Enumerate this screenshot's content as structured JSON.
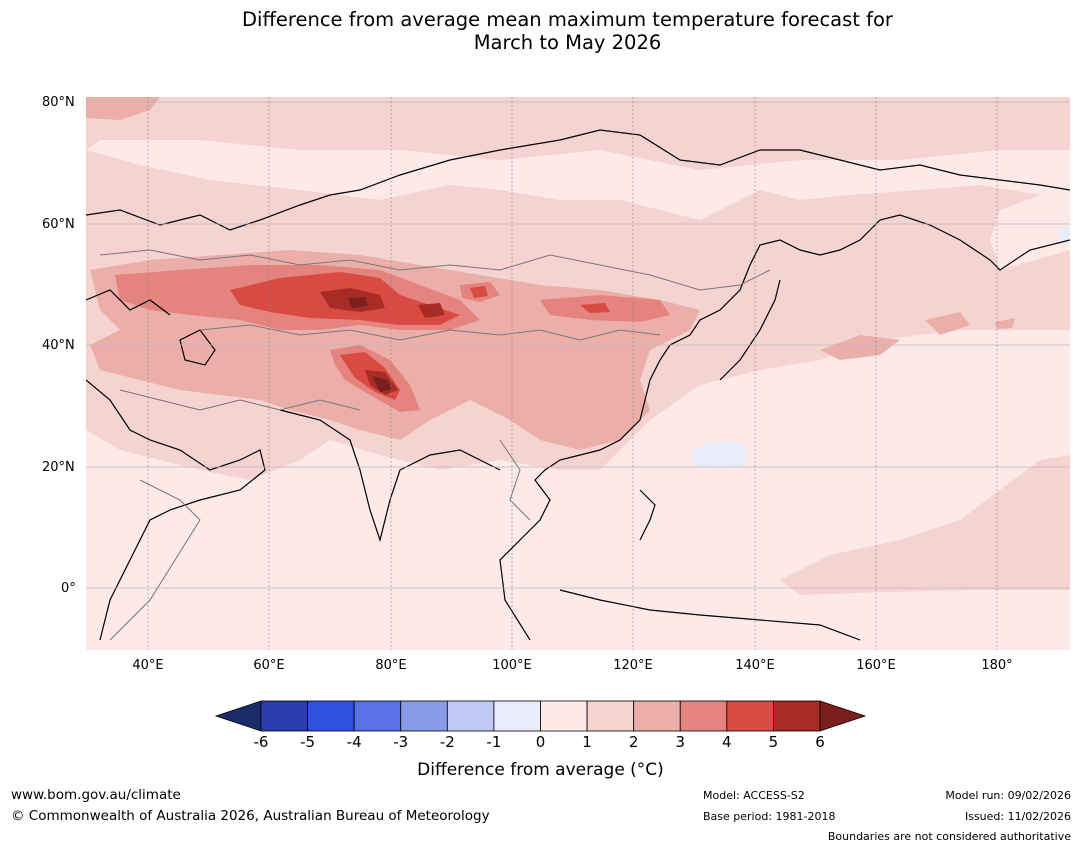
{
  "title": {
    "line1": "Difference from average mean maximum temperature forecast for",
    "line2": "March to May 2026"
  },
  "map": {
    "lat_labels": [
      "80°N",
      "60°N",
      "40°N",
      "20°N",
      "0°"
    ],
    "lon_labels": [
      "40°E",
      "60°E",
      "80°E",
      "100°E",
      "120°E",
      "140°E",
      "160°E",
      "180°"
    ],
    "legend_colors": [
      "#1b2a6b",
      "#2a3eb0",
      "#3050e0",
      "#5b72e6",
      "#8a9aeb",
      "#bfc8f4",
      "#e8ecfb",
      "#fce9e8",
      "#f4d3d1",
      "#ecaea9",
      "#e5837e",
      "#d84a42",
      "#a82c26",
      "#7b1f1c"
    ]
  },
  "colorbar": {
    "ticks": [
      "-6",
      "-5",
      "-4",
      "-3",
      "-2",
      "-1",
      "0",
      "1",
      "2",
      "3",
      "4",
      "5",
      "6"
    ],
    "title": "Difference from average (°C)"
  },
  "footer": {
    "website": "www.bom.gov.au/climate",
    "copyright": "© Commonwealth of Australia 2026, Australian Bureau of Meteorology",
    "model": "Model: ACCESS-S2",
    "base_period": "Base period: 1981-2018",
    "model_run": "Model run: 09/02/2026",
    "issued": "Issued: 11/02/2026",
    "boundaries_note": "Boundaries are not considered authoritative"
  }
}
